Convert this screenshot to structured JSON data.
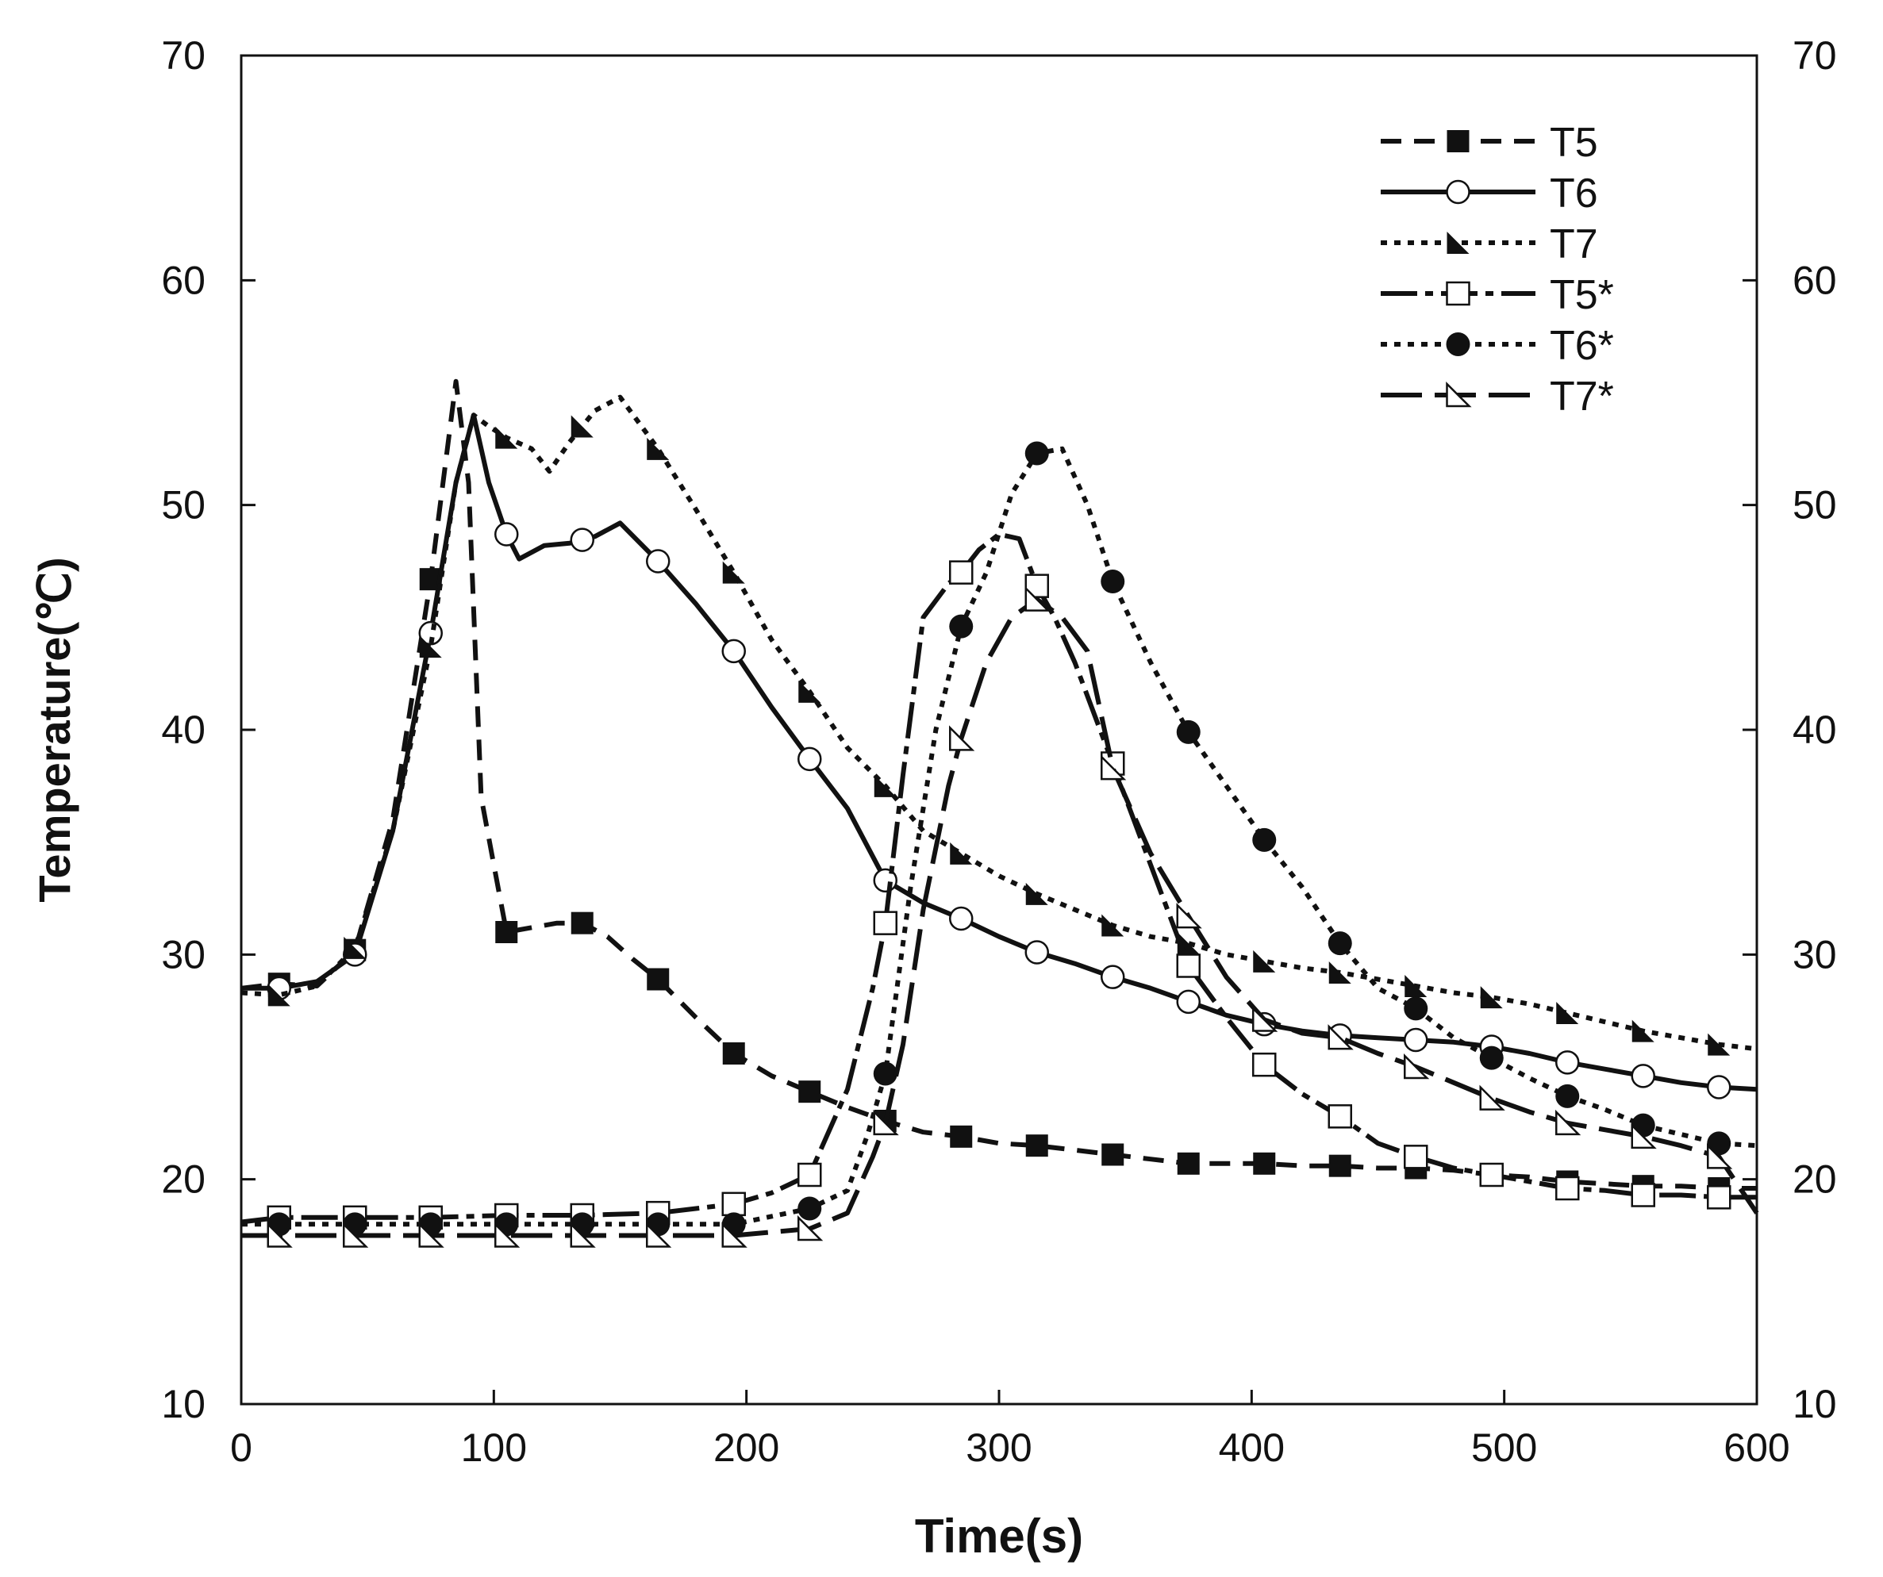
{
  "chart_data": {
    "type": "line",
    "title": "",
    "xlabel": "Time(s)",
    "ylabel": "Temperature(℃)",
    "xlim": [
      0,
      600
    ],
    "ylim": [
      10,
      70
    ],
    "xticks": [
      0,
      100,
      200,
      300,
      400,
      500,
      600
    ],
    "yticks": [
      10,
      20,
      30,
      40,
      50,
      60,
      70
    ],
    "secondary_yticks": [
      10,
      20,
      30,
      40,
      50,
      60,
      70
    ],
    "grid": false,
    "legend_position": "top-right",
    "series": [
      {
        "name": "T5",
        "line": "dashed",
        "marker": "filled-square",
        "x": [
          0,
          15,
          30,
          45,
          60,
          75,
          85,
          90,
          95,
          100,
          105,
          115,
          125,
          135,
          145,
          155,
          165,
          180,
          195,
          210,
          225,
          240,
          255,
          270,
          285,
          300,
          315,
          330,
          345,
          360,
          375,
          390,
          405,
          420,
          435,
          450,
          465,
          480,
          495,
          510,
          525,
          540,
          555,
          570,
          585,
          600
        ],
        "y": [
          28.5,
          28.7,
          28.6,
          30.2,
          36,
          46.7,
          55.5,
          51,
          37,
          34,
          31,
          31.2,
          31.4,
          31.4,
          30.8,
          29.8,
          28.9,
          27.2,
          25.6,
          24.6,
          23.9,
          23.2,
          22.6,
          22.1,
          21.9,
          21.6,
          21.5,
          21.3,
          21.1,
          20.9,
          20.7,
          20.7,
          20.7,
          20.6,
          20.6,
          20.5,
          20.5,
          20.4,
          20.2,
          20.1,
          19.9,
          19.8,
          19.7,
          19.7,
          19.6,
          19.6
        ],
        "marker_x": [
          15,
          45,
          75,
          105,
          135,
          165,
          195,
          225,
          255,
          285,
          315,
          345,
          375,
          405,
          435,
          465,
          495,
          525,
          555,
          585
        ]
      },
      {
        "name": "T6",
        "line": "solid",
        "marker": "open-circle",
        "x": [
          0,
          15,
          30,
          45,
          60,
          75,
          85,
          92,
          98,
          105,
          110,
          120,
          130,
          140,
          150,
          165,
          180,
          195,
          210,
          225,
          240,
          255,
          270,
          285,
          300,
          315,
          330,
          345,
          360,
          375,
          390,
          405,
          420,
          435,
          450,
          465,
          480,
          495,
          510,
          525,
          540,
          555,
          570,
          585,
          600
        ],
        "y": [
          28.5,
          28.5,
          28.8,
          30,
          35.5,
          44.3,
          51,
          54,
          51,
          48.7,
          47.6,
          48.2,
          48.3,
          48.6,
          49.2,
          47.5,
          45.6,
          43.5,
          41,
          38.7,
          36.5,
          33.3,
          32.3,
          31.6,
          30.8,
          30.1,
          29.6,
          29,
          28.5,
          27.9,
          27.3,
          26.9,
          26.6,
          26.4,
          26.3,
          26.2,
          26.1,
          25.9,
          25.6,
          25.2,
          24.9,
          24.6,
          24.3,
          24.1,
          24
        ]
      },
      {
        "name": "T7",
        "line": "dotted",
        "marker": "filled-triangle",
        "x": [
          0,
          15,
          30,
          45,
          60,
          75,
          85,
          92,
          98,
          105,
          115,
          122,
          130,
          140,
          150,
          165,
          180,
          195,
          210,
          225,
          240,
          255,
          270,
          285,
          300,
          315,
          330,
          345,
          360,
          375,
          390,
          405,
          420,
          435,
          450,
          465,
          480,
          495,
          510,
          525,
          540,
          555,
          570,
          585,
          600
        ],
        "y": [
          28.3,
          28.2,
          28.6,
          30.3,
          35.5,
          43.7,
          51,
          54,
          53.5,
          53,
          52.5,
          51.5,
          52.8,
          54.2,
          54.8,
          52.5,
          49.8,
          47,
          44,
          41.7,
          39.2,
          37.5,
          35.5,
          34.5,
          33.5,
          32.7,
          32,
          31.3,
          30.8,
          30.5,
          30,
          29.7,
          29.4,
          29.2,
          28.9,
          28.6,
          28.3,
          28.1,
          27.8,
          27.4,
          27,
          26.6,
          26.3,
          26,
          25.8
        ]
      },
      {
        "name": "T5*",
        "line": "dash-dot",
        "marker": "open-square",
        "x": [
          0,
          15,
          45,
          75,
          105,
          135,
          165,
          195,
          210,
          225,
          240,
          250,
          255,
          262,
          270,
          280,
          285,
          292,
          300,
          308,
          315,
          322,
          330,
          345,
          360,
          375,
          390,
          405,
          420,
          435,
          450,
          465,
          480,
          495,
          510,
          525,
          540,
          555,
          570,
          585,
          600
        ],
        "y": [
          18.1,
          18.3,
          18.3,
          18.3,
          18.4,
          18.4,
          18.5,
          18.9,
          19.4,
          20.2,
          24,
          28.5,
          31.4,
          38,
          45,
          46.5,
          47,
          48,
          48.7,
          48.5,
          46.4,
          45,
          43,
          38.5,
          34,
          29.5,
          27.2,
          25.1,
          23.8,
          22.8,
          21.6,
          21,
          20.5,
          20.2,
          19.9,
          19.6,
          19.5,
          19.3,
          19.3,
          19.2,
          19.2
        ]
      },
      {
        "name": "T6*",
        "line": "dotted",
        "marker": "filled-circle",
        "x": [
          0,
          15,
          45,
          75,
          105,
          135,
          165,
          195,
          225,
          240,
          248,
          255,
          265,
          275,
          285,
          295,
          305,
          315,
          325,
          335,
          345,
          360,
          375,
          390,
          405,
          420,
          435,
          450,
          465,
          480,
          495,
          510,
          525,
          540,
          555,
          570,
          585,
          600
        ],
        "y": [
          18,
          18,
          18,
          18,
          18,
          18,
          18,
          18,
          18.7,
          19.5,
          22,
          24.7,
          33,
          40,
          44.6,
          47,
          50.5,
          52.3,
          52.5,
          50,
          46.6,
          43,
          39.9,
          37.5,
          35.1,
          33,
          30.5,
          28.5,
          27.6,
          26.3,
          25.4,
          24.5,
          23.7,
          23.1,
          22.4,
          22,
          21.6,
          21.5
        ]
      },
      {
        "name": "T7*",
        "line": "long-dash",
        "marker": "open-triangle",
        "x": [
          0,
          15,
          45,
          75,
          105,
          135,
          165,
          195,
          225,
          240,
          250,
          255,
          262,
          270,
          280,
          285,
          295,
          305,
          315,
          325,
          335,
          345,
          360,
          375,
          390,
          405,
          420,
          435,
          450,
          465,
          480,
          495,
          510,
          525,
          540,
          555,
          570,
          585,
          600
        ],
        "y": [
          17.5,
          17.5,
          17.5,
          17.5,
          17.5,
          17.5,
          17.5,
          17.5,
          17.8,
          18.5,
          21,
          22.5,
          26,
          32,
          37.5,
          39.6,
          43,
          45,
          45.8,
          45,
          43.5,
          38.3,
          34.5,
          31.7,
          29,
          27.1,
          26.5,
          26.3,
          25.6,
          25,
          24.3,
          23.6,
          23,
          22.5,
          22.2,
          21.9,
          21.5,
          21,
          18.5
        ]
      }
    ]
  }
}
